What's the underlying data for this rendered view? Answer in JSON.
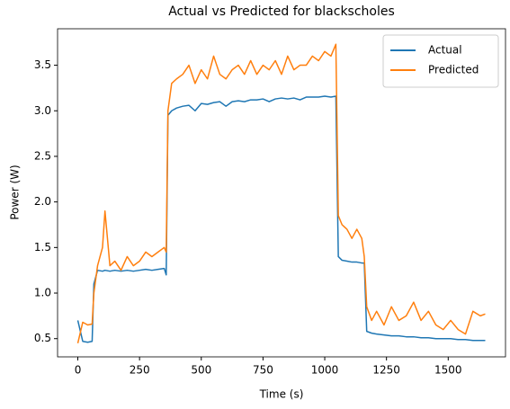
{
  "chart_data": {
    "type": "line",
    "title": "Actual vs Predicted for blackscholes",
    "x_label": "Time (s)",
    "y_label": "Power (W)",
    "x": [
      0,
      20,
      40,
      58,
      65,
      80,
      100,
      110,
      130,
      150,
      175,
      200,
      225,
      250,
      275,
      300,
      325,
      350,
      358,
      365,
      380,
      400,
      425,
      450,
      475,
      500,
      525,
      550,
      575,
      600,
      625,
      650,
      675,
      700,
      725,
      750,
      775,
      800,
      825,
      850,
      875,
      900,
      925,
      950,
      975,
      1000,
      1025,
      1045,
      1055,
      1070,
      1090,
      1110,
      1130,
      1150,
      1160,
      1170,
      1190,
      1210,
      1240,
      1270,
      1300,
      1330,
      1360,
      1390,
      1420,
      1450,
      1480,
      1510,
      1540,
      1570,
      1600,
      1630,
      1650
    ],
    "series": [
      {
        "name": "Actual",
        "color": "#1f77b4",
        "values": [
          0.7,
          0.47,
          0.46,
          0.47,
          1.1,
          1.25,
          1.24,
          1.25,
          1.24,
          1.25,
          1.24,
          1.25,
          1.24,
          1.25,
          1.26,
          1.25,
          1.26,
          1.27,
          1.2,
          2.95,
          3.0,
          3.03,
          3.05,
          3.06,
          3.0,
          3.08,
          3.07,
          3.09,
          3.1,
          3.05,
          3.1,
          3.11,
          3.1,
          3.12,
          3.12,
          3.13,
          3.1,
          3.13,
          3.14,
          3.13,
          3.14,
          3.12,
          3.15,
          3.15,
          3.15,
          3.16,
          3.15,
          3.16,
          1.4,
          1.36,
          1.35,
          1.34,
          1.34,
          1.33,
          1.33,
          0.58,
          0.56,
          0.55,
          0.54,
          0.53,
          0.53,
          0.52,
          0.52,
          0.51,
          0.51,
          0.5,
          0.5,
          0.5,
          0.49,
          0.49,
          0.48,
          0.48,
          0.48
        ]
      },
      {
        "name": "Predicted",
        "color": "#ff7f0e",
        "values": [
          0.45,
          0.68,
          0.65,
          0.66,
          1.0,
          1.3,
          1.5,
          1.9,
          1.3,
          1.35,
          1.25,
          1.4,
          1.3,
          1.35,
          1.45,
          1.4,
          1.45,
          1.5,
          1.45,
          3.0,
          3.3,
          3.35,
          3.4,
          3.5,
          3.3,
          3.45,
          3.35,
          3.6,
          3.4,
          3.35,
          3.45,
          3.5,
          3.4,
          3.55,
          3.4,
          3.5,
          3.45,
          3.55,
          3.4,
          3.6,
          3.45,
          3.5,
          3.5,
          3.6,
          3.55,
          3.65,
          3.6,
          3.73,
          1.85,
          1.75,
          1.7,
          1.6,
          1.7,
          1.6,
          1.4,
          0.85,
          0.7,
          0.8,
          0.65,
          0.85,
          0.7,
          0.75,
          0.9,
          0.7,
          0.8,
          0.65,
          0.6,
          0.7,
          0.6,
          0.55,
          0.8,
          0.75,
          0.77
        ]
      }
    ],
    "xlim": [
      -82,
      1732
    ],
    "ylim": [
      0.3,
      3.9
    ],
    "xticks": [
      0,
      250,
      500,
      750,
      1000,
      1250,
      1500
    ],
    "yticks": [
      0.5,
      {
        "value": 1,
        "label": "1.0"
      },
      1.5,
      {
        "value": 2,
        "label": "2.0"
      },
      2.5,
      {
        "value": 3,
        "label": "3.0"
      },
      3.5
    ],
    "grid": false,
    "legend": "upper right"
  }
}
